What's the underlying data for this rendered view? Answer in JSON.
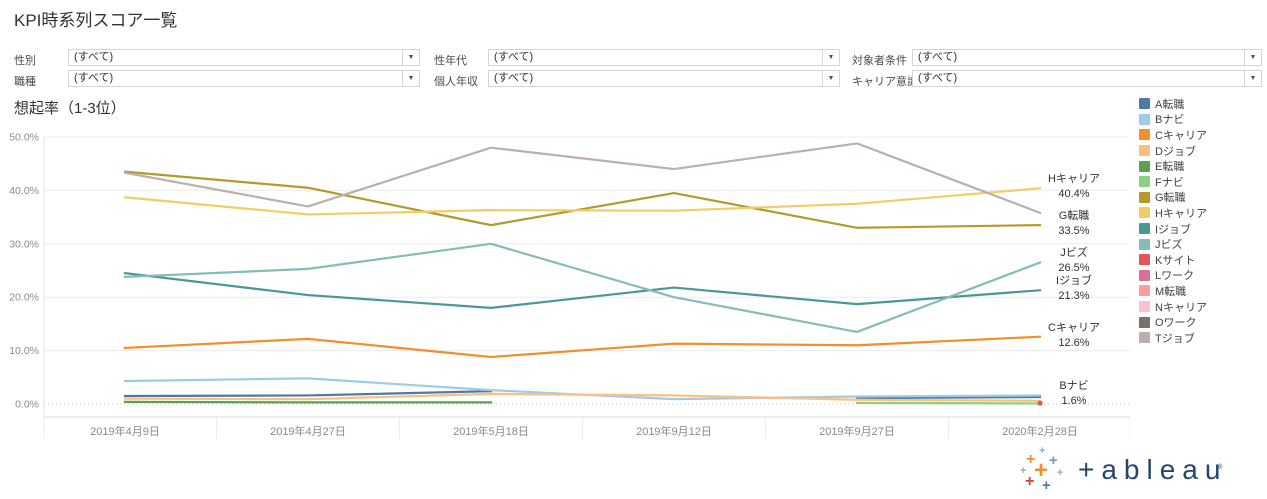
{
  "page": {
    "title": "KPI時系列スコア一覧"
  },
  "filters": [
    {
      "label": "性別",
      "value": "(すべて)"
    },
    {
      "label": "性年代",
      "value": "(すべて)"
    },
    {
      "label": "対象者条件",
      "value": "(すべて)"
    },
    {
      "label": "職種",
      "value": "(すべて)"
    },
    {
      "label": "個人年収",
      "value": "(すべて)"
    },
    {
      "label": "キャリア意識",
      "value": "(すべて)"
    }
  ],
  "chart": {
    "title": "想起率（1-3位）"
  },
  "chart_data": {
    "type": "line",
    "title": "想起率（1-3位）",
    "x_labels": [
      "2019年4月9日",
      "2019年4月27日",
      "2019年5月18日",
      "2019年9月12日",
      "2019年9月27日",
      "2020年2月28日"
    ],
    "y_ticks": [
      "0.0%",
      "10.0%",
      "20.0%",
      "30.0%",
      "40.0%",
      "50.0%"
    ],
    "ylim": [
      0,
      50
    ],
    "unit": "%",
    "grid": true,
    "legend_position": "right",
    "series": [
      {
        "name": "A転職",
        "color": "#4e79a7",
        "values": [
          1.5,
          1.6,
          2.4,
          null,
          1.1,
          1.3
        ]
      },
      {
        "name": "Bナビ",
        "color": "#a0cbe8",
        "values": [
          4.3,
          4.8,
          2.6,
          0.9,
          1.4,
          1.6
        ]
      },
      {
        "name": "Cキャリア",
        "color": "#f28e2b",
        "values": [
          10.5,
          12.2,
          8.8,
          11.3,
          11.0,
          12.6
        ]
      },
      {
        "name": "Dジョブ",
        "color": "#ffbe7d",
        "values": [
          1.0,
          0.9,
          1.9,
          1.6,
          0.8,
          0.6
        ]
      },
      {
        "name": "E転職",
        "color": "#59a14f",
        "values": [
          0.4,
          0.3,
          0.3,
          null,
          null,
          null
        ]
      },
      {
        "name": "Fナビ",
        "color": "#8cd17d",
        "values": [
          null,
          null,
          null,
          null,
          0.2,
          0.1
        ]
      },
      {
        "name": "G転職",
        "color": "#b6992d",
        "values": [
          43.5,
          40.5,
          33.5,
          39.5,
          33.0,
          33.5
        ]
      },
      {
        "name": "Hキャリア",
        "color": "#f1ce63",
        "values": [
          38.7,
          35.5,
          36.3,
          36.2,
          37.5,
          40.4
        ]
      },
      {
        "name": "Iジョブ",
        "color": "#499894",
        "values": [
          24.5,
          20.4,
          18.0,
          21.8,
          18.7,
          21.3
        ]
      },
      {
        "name": "Jビズ",
        "color": "#86bcb6",
        "values": [
          23.8,
          25.3,
          30.0,
          20.0,
          13.5,
          26.5
        ]
      },
      {
        "name": "Kサイト",
        "color": "#e15759",
        "values": [
          null,
          null,
          null,
          null,
          null,
          0.15
        ]
      },
      {
        "name": "Lワーク",
        "color": "#d37295",
        "values": [
          null,
          null,
          null,
          null,
          null,
          null
        ]
      },
      {
        "name": "M転職",
        "color": "#ff9d9a",
        "values": [
          null,
          null,
          null,
          null,
          null,
          null
        ]
      },
      {
        "name": "Nキャリア",
        "color": "#fabfd2",
        "values": [
          null,
          null,
          null,
          null,
          null,
          null
        ]
      },
      {
        "name": "Oワーク",
        "color": "#79706e",
        "values": [
          null,
          null,
          null,
          null,
          null,
          null
        ]
      },
      {
        "name": "Tジョブ",
        "color": "#bab0ac",
        "values": [
          43.3,
          37.0,
          48.0,
          44.0,
          48.8,
          35.8
        ]
      }
    ],
    "end_labels": [
      {
        "name": "Hキャリア",
        "value": "40.4%"
      },
      {
        "name": "G転職",
        "value": "33.5%"
      },
      {
        "name": "Jビズ",
        "value": "26.5%"
      },
      {
        "name": "Iジョブ",
        "value": "21.3%"
      },
      {
        "name": "Cキャリア",
        "value": "12.6%"
      },
      {
        "name": "Bナビ",
        "value": "1.6%"
      }
    ]
  },
  "logo": {
    "text": "tableau"
  },
  "colors": {
    "grid": "#ececec",
    "zero_line": "#c7c7c7",
    "axis_line": "#d9d9d9",
    "tick_text": "#8a8a8a"
  }
}
